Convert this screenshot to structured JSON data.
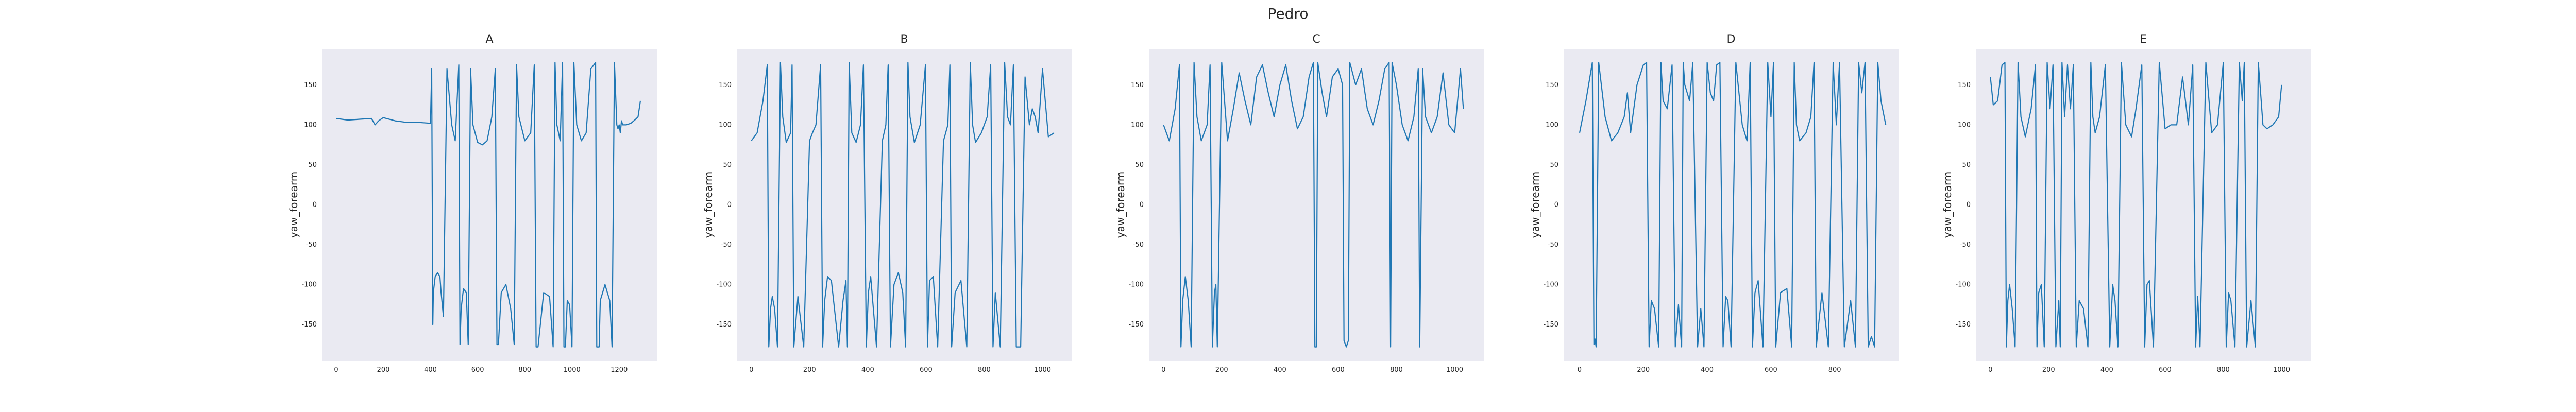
{
  "title": "Pedro",
  "chart_data": [
    {
      "type": "line",
      "title": "A",
      "ylabel": "yaw_forearm",
      "xlabel": "",
      "xlim": [
        -60,
        1360
      ],
      "ylim": [
        -195,
        195
      ],
      "xticks": [
        0,
        200,
        400,
        600,
        800,
        1000,
        1200
      ],
      "yticks": [
        -150,
        -100,
        -50,
        0,
        50,
        100,
        150
      ],
      "grid": false,
      "series": [
        {
          "x": [
            0,
            50,
            100,
            150,
            165,
            180,
            200,
            250,
            300,
            350,
            400,
            405,
            410,
            412,
            420,
            430,
            440,
            445,
            455,
            470,
            490,
            505,
            520,
            525,
            530,
            540,
            552,
            560,
            570,
            580,
            600,
            620,
            640,
            660,
            675,
            682,
            688,
            700,
            720,
            740,
            755,
            765,
            775,
            800,
            825,
            840,
            848,
            856,
            880,
            905,
            920,
            928,
            936,
            950,
            960,
            966,
            972,
            980,
            990,
            1000,
            1008,
            1020,
            1040,
            1060,
            1080,
            1100,
            1105,
            1115,
            1120,
            1140,
            1160,
            1170,
            1180,
            1190,
            1195,
            1200,
            1205,
            1210,
            1215,
            1230,
            1250,
            1270,
            1280,
            1290
          ],
          "values": [
            108,
            106,
            107,
            108,
            100,
            105,
            109,
            105,
            103,
            103,
            102,
            170,
            -150,
            -110,
            -90,
            -85,
            -90,
            -110,
            -140,
            170,
            100,
            80,
            175,
            -175,
            -130,
            -105,
            -110,
            -175,
            170,
            100,
            78,
            75,
            80,
            110,
            170,
            -175,
            -175,
            -110,
            -100,
            -130,
            -175,
            175,
            110,
            80,
            90,
            175,
            -178,
            -178,
            -110,
            -115,
            -178,
            178,
            100,
            80,
            178,
            -178,
            -178,
            -120,
            -125,
            -178,
            178,
            100,
            80,
            90,
            170,
            178,
            -178,
            -178,
            -120,
            -100,
            -120,
            -178,
            178,
            100,
            95,
            100,
            90,
            105,
            100,
            100,
            102,
            107,
            110,
            130
          ]
        }
      ]
    },
    {
      "type": "line",
      "title": "B",
      "ylabel": "yaw_forearm",
      "xlabel": "",
      "xlim": [
        -50,
        1100
      ],
      "ylim": [
        -195,
        195
      ],
      "xticks": [
        0,
        200,
        400,
        600,
        800,
        1000
      ],
      "yticks": [
        -150,
        -100,
        -50,
        0,
        50,
        100,
        150
      ],
      "grid": false,
      "series": [
        {
          "x": [
            0,
            20,
            40,
            55,
            60,
            66,
            72,
            80,
            90,
            100,
            108,
            120,
            135,
            140,
            146,
            160,
            180,
            200,
            210,
            222,
            238,
            245,
            252,
            262,
            275,
            300,
            315,
            325,
            330,
            336,
            345,
            360,
            375,
            385,
            395,
            402,
            410,
            430,
            450,
            462,
            470,
            478,
            490,
            505,
            520,
            530,
            538,
            545,
            560,
            580,
            598,
            605,
            612,
            625,
            640,
            660,
            675,
            682,
            688,
            700,
            720,
            740,
            752,
            760,
            770,
            790,
            810,
            822,
            830,
            838,
            855,
            870,
            880,
            890,
            900,
            910,
            925,
            940,
            955,
            965,
            975,
            985,
            1000,
            1020,
            1040
          ],
          "values": [
            80,
            90,
            130,
            175,
            -178,
            -130,
            -115,
            -130,
            -178,
            178,
            110,
            78,
            90,
            175,
            -178,
            -115,
            -178,
            80,
            90,
            100,
            175,
            -178,
            -120,
            -90,
            -95,
            -178,
            -120,
            -95,
            -178,
            178,
            90,
            78,
            100,
            175,
            -178,
            -110,
            -90,
            -178,
            80,
            100,
            175,
            -178,
            -100,
            -85,
            -110,
            -178,
            178,
            110,
            78,
            100,
            175,
            -178,
            -95,
            -90,
            -178,
            80,
            100,
            175,
            -178,
            -110,
            -95,
            -178,
            178,
            100,
            78,
            90,
            110,
            175,
            -178,
            -110,
            -178,
            178,
            110,
            100,
            175,
            -178,
            -178,
            160,
            100,
            120,
            110,
            90,
            170,
            85,
            90
          ]
        }
      ]
    },
    {
      "type": "line",
      "title": "C",
      "ylabel": "yaw_forearm",
      "xlabel": "",
      "xlim": [
        -50,
        1100
      ],
      "ylim": [
        -195,
        195
      ],
      "xticks": [
        0,
        200,
        400,
        600,
        800,
        1000
      ],
      "yticks": [
        -150,
        -100,
        -50,
        0,
        50,
        100,
        150
      ],
      "grid": false,
      "series": [
        {
          "x": [
            0,
            20,
            40,
            55,
            60,
            66,
            75,
            85,
            95,
            105,
            115,
            130,
            150,
            160,
            168,
            175,
            180,
            185,
            200,
            220,
            240,
            260,
            280,
            300,
            320,
            340,
            360,
            380,
            400,
            420,
            440,
            460,
            480,
            500,
            515,
            520,
            525,
            530,
            545,
            560,
            580,
            600,
            615,
            620,
            628,
            635,
            640,
            660,
            680,
            700,
            720,
            740,
            760,
            775,
            780,
            785,
            800,
            820,
            840,
            860,
            875,
            880,
            890,
            900,
            920,
            940,
            960,
            980,
            1000,
            1020,
            1030
          ],
          "values": [
            100,
            80,
            120,
            175,
            -178,
            -120,
            -90,
            -120,
            -178,
            178,
            110,
            80,
            100,
            175,
            -178,
            -110,
            -100,
            -178,
            178,
            80,
            120,
            165,
            130,
            100,
            160,
            175,
            140,
            110,
            150,
            175,
            130,
            95,
            110,
            160,
            178,
            -178,
            -178,
            178,
            140,
            110,
            160,
            170,
            150,
            -170,
            -178,
            -170,
            178,
            150,
            170,
            120,
            100,
            130,
            170,
            178,
            -178,
            178,
            150,
            100,
            80,
            110,
            170,
            -178,
            170,
            110,
            90,
            110,
            165,
            100,
            90,
            170,
            120
          ]
        }
      ]
    },
    {
      "type": "line",
      "title": "D",
      "ylabel": "yaw_forearm",
      "xlabel": "",
      "xlim": [
        -50,
        1000
      ],
      "ylim": [
        -195,
        195
      ],
      "xticks": [
        0,
        200,
        400,
        600,
        800
      ],
      "yticks": [
        -150,
        -100,
        -50,
        0,
        50,
        100,
        150
      ],
      "grid": false,
      "series": [
        {
          "x": [
            0,
            20,
            40,
            45,
            48,
            52,
            60,
            80,
            100,
            120,
            140,
            150,
            160,
            170,
            180,
            200,
            210,
            218,
            225,
            235,
            248,
            255,
            262,
            275,
            290,
            300,
            310,
            320,
            325,
            330,
            345,
            355,
            370,
            380,
            390,
            400,
            410,
            420,
            430,
            440,
            450,
            458,
            465,
            475,
            490,
            510,
            525,
            535,
            542,
            550,
            560,
            575,
            590,
            600,
            608,
            615,
            630,
            650,
            665,
            673,
            680,
            690,
            710,
            725,
            735,
            742,
            760,
            780,
            795,
            805,
            815,
            830,
            850,
            865,
            875,
            885,
            895,
            905,
            915,
            925,
            935,
            945,
            960
          ],
          "values": [
            90,
            130,
            178,
            -175,
            -168,
            -178,
            178,
            110,
            80,
            90,
            110,
            140,
            90,
            120,
            150,
            175,
            178,
            -178,
            -120,
            -130,
            -178,
            178,
            130,
            120,
            175,
            -178,
            -125,
            -178,
            178,
            150,
            130,
            178,
            -178,
            -130,
            -178,
            178,
            140,
            130,
            175,
            178,
            -178,
            -115,
            -120,
            -178,
            178,
            100,
            80,
            178,
            -178,
            -110,
            -95,
            -178,
            178,
            110,
            178,
            -178,
            -110,
            -105,
            -178,
            178,
            100,
            80,
            90,
            110,
            178,
            -178,
            -110,
            -178,
            178,
            100,
            178,
            -178,
            -120,
            -178,
            178,
            140,
            178,
            -178,
            -165,
            -178,
            178,
            130,
            100
          ]
        }
      ]
    },
    {
      "type": "line",
      "title": "E",
      "ylabel": "yaw_forearm",
      "xlabel": "",
      "xlim": [
        -50,
        1100
      ],
      "ylim": [
        -195,
        195
      ],
      "xticks": [
        0,
        200,
        400,
        600,
        800,
        1000
      ],
      "yticks": [
        -150,
        -100,
        -50,
        0,
        50,
        100,
        150
      ],
      "grid": false,
      "series": [
        {
          "x": [
            0,
            10,
            25,
            40,
            50,
            55,
            60,
            66,
            75,
            85,
            95,
            105,
            120,
            140,
            155,
            160,
            166,
            175,
            185,
            195,
            205,
            215,
            225,
            235,
            240,
            246,
            255,
            265,
            275,
            285,
            295,
            305,
            320,
            335,
            345,
            352,
            360,
            375,
            395,
            410,
            420,
            428,
            438,
            450,
            465,
            485,
            500,
            520,
            530,
            538,
            546,
            560,
            580,
            600,
            620,
            640,
            660,
            680,
            695,
            705,
            712,
            720,
            740,
            760,
            780,
            800,
            810,
            818,
            826,
            840,
            855,
            865,
            872,
            880,
            895,
            910,
            920,
            928,
            936,
            950,
            970,
            990,
            1000
          ],
          "values": [
            160,
            125,
            130,
            175,
            178,
            -178,
            -120,
            -100,
            -130,
            -178,
            178,
            110,
            85,
            120,
            175,
            -178,
            -110,
            -100,
            -178,
            178,
            120,
            175,
            -178,
            -120,
            -178,
            178,
            110,
            175,
            120,
            175,
            -178,
            -120,
            -130,
            -178,
            178,
            110,
            90,
            110,
            175,
            -178,
            -100,
            -120,
            -178,
            178,
            100,
            85,
            120,
            175,
            -178,
            -100,
            -95,
            -178,
            178,
            95,
            100,
            100,
            160,
            100,
            175,
            -178,
            -115,
            -178,
            178,
            90,
            100,
            178,
            -178,
            -110,
            -120,
            -178,
            178,
            130,
            178,
            -178,
            -120,
            -178,
            178,
            140,
            100,
            95,
            100,
            110,
            150
          ]
        }
      ]
    }
  ]
}
